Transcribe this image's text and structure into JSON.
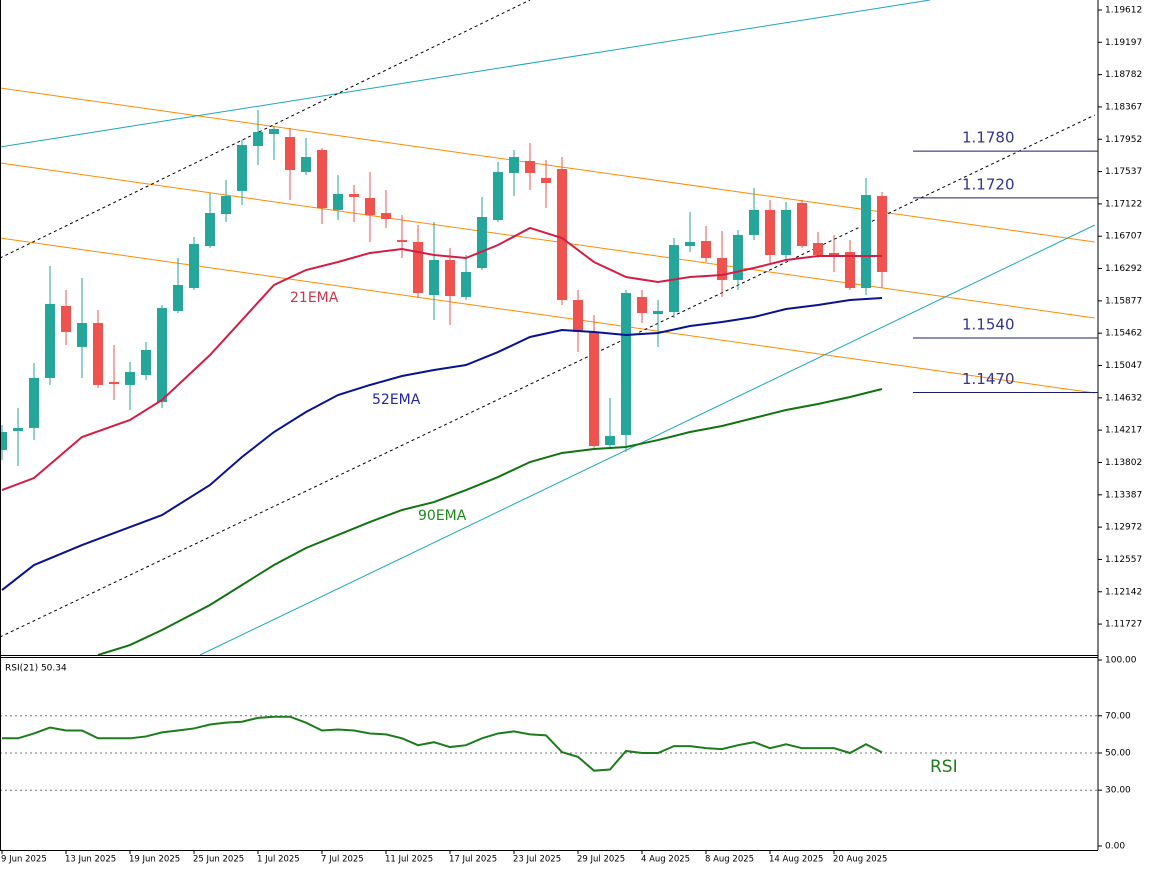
{
  "chart_data": [
    {
      "type": "candlestick",
      "categories": [
        "9 Jun 2025",
        null,
        null,
        null,
        "13 Jun 2025",
        null,
        null,
        null,
        "19 Jun 2025",
        null,
        null,
        null,
        "25 Jun 2025",
        null,
        null,
        null,
        "1 Jul 2025",
        null,
        null,
        null,
        "7 Jul 2025",
        null,
        null,
        null,
        "11 Jul 2025",
        null,
        null,
        null,
        "17 Jul 2025",
        null,
        null,
        null,
        "23 Jul 2025",
        null,
        null,
        null,
        "29 Jul 2025",
        null,
        null,
        null,
        "4 Aug 2025",
        null,
        null,
        null,
        "8 Aug 2025",
        null,
        null,
        null,
        "14 Aug 2025",
        null,
        null,
        null,
        "20 Aug 2025",
        null,
        null,
        null
      ],
      "open": [
        1.13962,
        1.14206,
        1.14245,
        1.14887,
        1.15811,
        1.15285,
        1.15593,
        1.14835,
        1.14797,
        1.14925,
        1.14578,
        1.15747,
        1.16042,
        1.16581,
        1.16992,
        1.17288,
        1.17865,
        1.18019,
        1.17981,
        1.17532,
        1.17814,
        1.17044,
        1.17249,
        1.17198,
        1.17005,
        1.16658,
        1.16633,
        1.15952,
        1.16402,
        1.15927,
        1.16299,
        1.16915,
        1.17519,
        1.17673,
        1.17455,
        1.1757,
        1.15888,
        1.15477,
        1.14026,
        1.14155,
        1.15927,
        1.15708,
        1.15734,
        1.16581,
        1.16646,
        1.16427,
        1.16145,
        1.16723,
        1.17044,
        1.16466,
        1.17134,
        1.1662,
        1.16492,
        1.16504,
        1.16042,
        1.17223
      ],
      "high": [
        1.14283,
        1.14501,
        1.15079,
        1.16325,
        1.16016,
        1.16171,
        1.1576,
        1.1531,
        1.15092,
        1.15349,
        1.15824,
        1.16427,
        1.16697,
        1.17262,
        1.17429,
        1.17942,
        1.18328,
        1.18122,
        1.18097,
        1.17968,
        1.1784,
        1.17493,
        1.17365,
        1.17532,
        1.173,
        1.16979,
        1.16851,
        1.1689,
        1.16556,
        1.16466,
        1.17211,
        1.1766,
        1.17814,
        1.17904,
        1.17686,
        1.17724,
        1.16016,
        1.15695,
        1.1463,
        1.16016,
        1.16016,
        1.15888,
        1.16684,
        1.17018,
        1.16838,
        1.16774,
        1.16787,
        1.17326,
        1.17172,
        1.17146,
        1.17172,
        1.16761,
        1.16723,
        1.16658,
        1.17455,
        1.17275
      ],
      "low": [
        1.13834,
        1.13757,
        1.1409,
        1.14797,
        1.1531,
        1.14887,
        1.14758,
        1.14604,
        1.14476,
        1.14861,
        1.14501,
        1.15721,
        1.16016,
        1.16556,
        1.1689,
        1.17108,
        1.17621,
        1.17686,
        1.17172,
        1.17493,
        1.16864,
        1.16915,
        1.1689,
        1.16633,
        1.16813,
        1.16427,
        1.15914,
        1.15631,
        1.15567,
        1.15888,
        1.16273,
        1.1689,
        1.17223,
        1.173,
        1.17069,
        1.15824,
        1.1522,
        1.13988,
        1.13988,
        1.13936,
        1.15593,
        1.15285,
        1.15657,
        1.16504,
        1.16376,
        1.15927,
        1.16016,
        1.16658,
        1.16337,
        1.16402,
        1.16556,
        1.16427,
        1.16248,
        1.16016,
        1.15952,
        1.16042
      ],
      "close": [
        1.14193,
        1.14245,
        1.14887,
        1.15837,
        1.15477,
        1.15593,
        1.14797,
        1.14809,
        1.14964,
        1.15246,
        1.15785,
        1.16081,
        1.16607,
        1.17005,
        1.17223,
        1.17878,
        1.18045,
        1.18084,
        1.17557,
        1.17724,
        1.17069,
        1.17249,
        1.17211,
        1.16979,
        1.16928,
        1.16633,
        1.15978,
        1.16402,
        1.15939,
        1.16248,
        1.16954,
        1.17532,
        1.17724,
        1.17519,
        1.1739,
        1.15888,
        1.15477,
        1.14013,
        1.14142,
        1.15978,
        1.15721,
        1.15747,
        1.16594,
        1.16633,
        1.16427,
        1.16145,
        1.16723,
        1.17044,
        1.16466,
        1.17044,
        1.16581,
        1.16466,
        1.16453,
        1.16042,
        1.17236,
        1.16248
      ],
      "up_color": "#26a69a",
      "down_color": "#ef5350",
      "ylim": [
        1.1133,
        1.1974
      ],
      "yticks": [
        1.19612,
        1.19197,
        1.18782,
        1.18367,
        1.17952,
        1.17537,
        1.17122,
        1.16707,
        1.16292,
        1.15877,
        1.15462,
        1.15047,
        1.14632,
        1.14217,
        1.13802,
        1.13387,
        1.12972,
        1.12557,
        1.12142,
        1.11727
      ],
      "overlays": [
        {
          "name": "21EMA",
          "color": "#d21e45",
          "label_color": "#c8374d",
          "x": [
            0,
            2,
            5,
            8,
            10,
            13,
            15,
            17,
            19,
            21,
            23,
            25,
            27,
            29,
            31,
            33,
            35,
            37,
            39,
            41,
            43,
            45,
            47,
            49,
            51,
            53,
            55
          ],
          "values": [
            1.13448,
            1.13602,
            1.14129,
            1.14347,
            1.14604,
            1.15182,
            1.15631,
            1.16081,
            1.16273,
            1.16376,
            1.16492,
            1.16543,
            1.16466,
            1.16427,
            1.16594,
            1.16813,
            1.16684,
            1.16376,
            1.16183,
            1.16119,
            1.16183,
            1.16209,
            1.16299,
            1.16402,
            1.16453,
            1.16453,
            1.16453
          ]
        },
        {
          "name": "52EMA",
          "color": "#0a138f",
          "label_color": "#2424a8",
          "x": [
            0,
            2,
            5,
            8,
            10,
            13,
            15,
            17,
            19,
            21,
            23,
            25,
            27,
            29,
            31,
            33,
            35,
            37,
            39,
            41,
            43,
            45,
            47,
            49,
            51,
            53,
            55
          ],
          "values": [
            1.12164,
            1.12485,
            1.12742,
            1.12973,
            1.13127,
            1.13513,
            1.13872,
            1.14193,
            1.1445,
            1.14668,
            1.14797,
            1.14912,
            1.14989,
            1.15053,
            1.1522,
            1.15413,
            1.15503,
            1.15477,
            1.15439,
            1.15464,
            1.15554,
            1.15606,
            1.1567,
            1.15772,
            1.15824,
            1.15888,
            1.15914
          ]
        },
        {
          "name": "90EMA",
          "color": "#137313",
          "label_color": "#1e8a1e",
          "x": [
            6,
            8,
            10,
            13,
            15,
            17,
            19,
            21,
            23,
            25,
            27,
            29,
            31,
            33,
            35,
            37,
            39,
            41,
            43,
            45,
            47,
            49,
            51,
            53,
            55
          ],
          "values": [
            1.1133,
            1.11458,
            1.11651,
            1.11972,
            1.12229,
            1.12485,
            1.12704,
            1.12871,
            1.13038,
            1.13192,
            1.13294,
            1.13448,
            1.13615,
            1.13808,
            1.13924,
            1.13975,
            1.14001,
            1.1409,
            1.14193,
            1.1427,
            1.14373,
            1.14476,
            1.14553,
            1.14643,
            1.14745
          ]
        }
      ],
      "trendlines": [
        {
          "color": "#ff8c00",
          "dashed": false,
          "points": [
            [
              -0.125,
              1.1861
            ],
            [
              68.3,
              1.16633
            ]
          ]
        },
        {
          "color": "#ff8c00",
          "dashed": false,
          "points": [
            [
              -0.125,
              1.17647
            ],
            [
              68.3,
              1.15657
            ]
          ]
        },
        {
          "color": "#ff8c00",
          "dashed": false,
          "points": [
            [
              -0.125,
              1.16684
            ],
            [
              68.3,
              1.14694
            ]
          ]
        },
        {
          "color": "#1ea7b8",
          "dashed": false,
          "points": [
            [
              -0.125,
              1.17853
            ],
            [
              58,
              1.1974
            ]
          ]
        },
        {
          "color": "#1ea7b8",
          "dashed": false,
          "points": [
            [
              12.375,
              1.1133
            ],
            [
              68.3,
              1.16851
            ]
          ]
        },
        {
          "color": "#000000",
          "dashed": true,
          "points": [
            [
              -0.125,
              1.16427
            ],
            [
              33,
              1.1974
            ]
          ]
        },
        {
          "color": "#000000",
          "dashed": true,
          "points": [
            [
              -0.125,
              1.11561
            ],
            [
              68.3,
              1.18263
            ]
          ]
        }
      ],
      "levels": [
        {
          "value": 1.178,
          "label": "1.1780"
        },
        {
          "value": 1.172,
          "label": "1.1720"
        },
        {
          "value": 1.154,
          "label": "1.1540"
        },
        {
          "value": 1.147,
          "label": "1.1470"
        }
      ],
      "level_color": "#1c1c6e",
      "level_label_color": "#34348a"
    },
    {
      "type": "line",
      "title": "RSI(21) 50.34",
      "annotation": "RSI",
      "color": "#1e7b1e",
      "values": [
        57.9,
        57.9,
        60.5,
        63.7,
        62.1,
        62.1,
        57.9,
        57.9,
        57.9,
        58.9,
        61.1,
        62.1,
        63.2,
        65.3,
        66.3,
        66.8,
        68.9,
        69.5,
        69.5,
        66.3,
        62.1,
        62.6,
        62.1,
        60.5,
        60.0,
        57.9,
        54.2,
        55.8,
        53.2,
        54.2,
        57.9,
        60.5,
        61.6,
        60.0,
        59.5,
        50.5,
        47.9,
        40.5,
        41.1,
        51.1,
        50.0,
        50.0,
        53.7,
        53.7,
        52.6,
        52.1,
        54.2,
        55.8,
        52.6,
        54.7,
        52.6,
        52.6,
        52.6,
        50.0,
        54.7,
        50.34
      ],
      "ylim": [
        0,
        100
      ],
      "yticks": [
        {
          "value": 100,
          "label": "100.00"
        },
        {
          "value": 70,
          "label": "70.00"
        },
        {
          "value": 50,
          "label": "50.00"
        },
        {
          "value": 30,
          "label": "30.00"
        },
        {
          "value": 0,
          "label": "0.00"
        }
      ]
    }
  ]
}
